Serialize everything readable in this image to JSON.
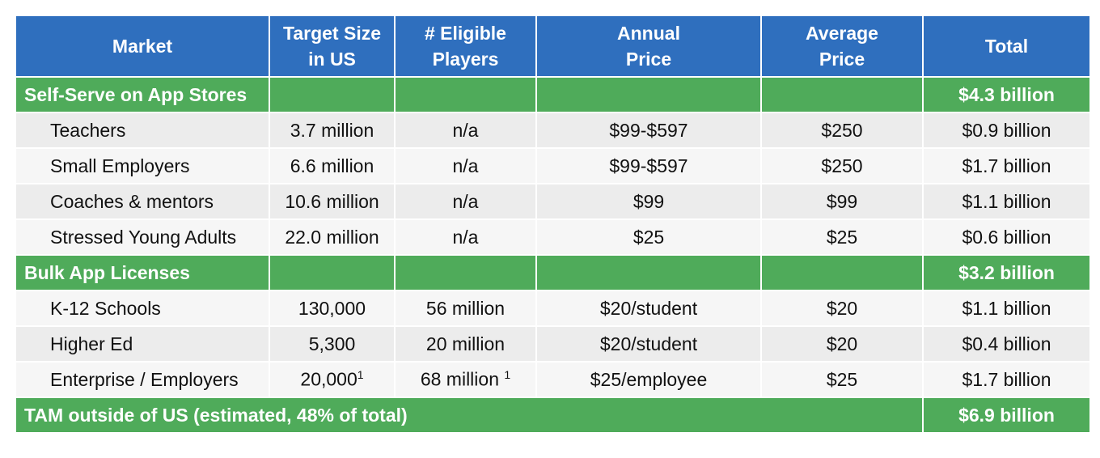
{
  "table": {
    "header": [
      [
        "Market"
      ],
      [
        "Target Size",
        "in US"
      ],
      [
        "# Eligible",
        "Players"
      ],
      [
        "Annual",
        "Price"
      ],
      [
        "Average",
        "Price"
      ],
      [
        "Total"
      ]
    ],
    "rows": [
      {
        "section": "Self-Serve on App Stores",
        "total": "$4.3 billion"
      },
      {
        "cells": [
          "Teachers",
          "3.7 million",
          "n/a",
          "$99-$597",
          "$250",
          "$0.9 billion"
        ]
      },
      {
        "cells": [
          "Small Employers",
          "6.6 million",
          "n/a",
          "$99-$597",
          "$250",
          "$1.7 billion"
        ]
      },
      {
        "cells": [
          "Coaches & mentors",
          "10.6 million",
          "n/a",
          "$99",
          "$99",
          "$1.1 billion"
        ]
      },
      {
        "cells": [
          "Stressed Young Adults",
          "22.0 million",
          "n/a",
          "$25",
          "$25",
          "$0.6 billion"
        ]
      },
      {
        "section": "Bulk App Licenses",
        "total": "$3.2 billion"
      },
      {
        "cells": [
          "K-12 Schools",
          "130,000",
          "56 million",
          "$20/student",
          "$20",
          "$1.1 billion"
        ]
      },
      {
        "cells": [
          "Higher Ed",
          "5,300",
          "20 million",
          "$20/student",
          "$20",
          "$0.4 billion"
        ]
      },
      {
        "cells": [
          "Enterprise / Employers",
          {
            "text": "20,000",
            "sup": "1"
          },
          {
            "text": "68 million ",
            "sup": "1"
          },
          "$25/employee",
          "$25",
          "$1.7 billion"
        ]
      },
      {
        "summary": "TAM outside of US (estimated, 48% of total)",
        "total": "$6.9 billion"
      }
    ]
  }
}
